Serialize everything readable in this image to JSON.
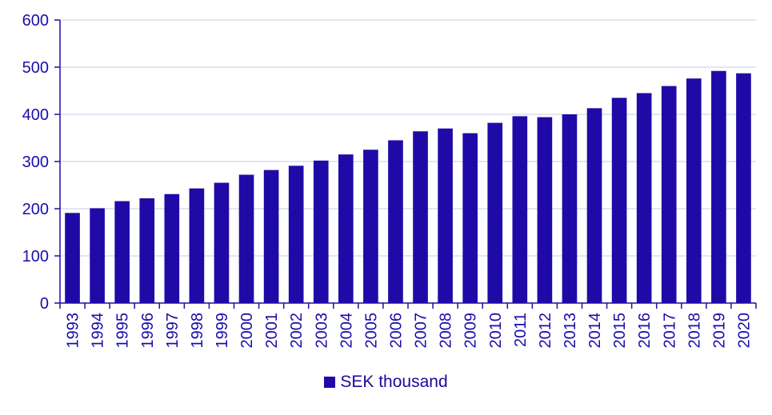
{
  "chart_data": {
    "type": "bar",
    "categories": [
      "1993",
      "1994",
      "1995",
      "1996",
      "1997",
      "1998",
      "1999",
      "2000",
      "2001",
      "2002",
      "2003",
      "2004",
      "2005",
      "2006",
      "2007",
      "2008",
      "2009",
      "2010",
      "2011",
      "2012",
      "2013",
      "2014",
      "2015",
      "2016",
      "2017",
      "2018",
      "2019",
      "2020"
    ],
    "series": [
      {
        "name": "SEK thousand",
        "values": [
          191,
          201,
          216,
          222,
          231,
          243,
          255,
          272,
          282,
          291,
          302,
          315,
          325,
          345,
          364,
          370,
          360,
          382,
          396,
          394,
          400,
          413,
          435,
          445,
          460,
          476,
          492,
          487
        ]
      }
    ],
    "yticks": [
      "0",
      "100",
      "200",
      "300",
      "400",
      "500",
      "600"
    ],
    "ylim": [
      0,
      600
    ],
    "grid": true,
    "legend_position": "bottom-center",
    "bar_color": "#1f0aa8",
    "axis_color": "#1a0dab",
    "grid_color": "#c9c9e8"
  }
}
